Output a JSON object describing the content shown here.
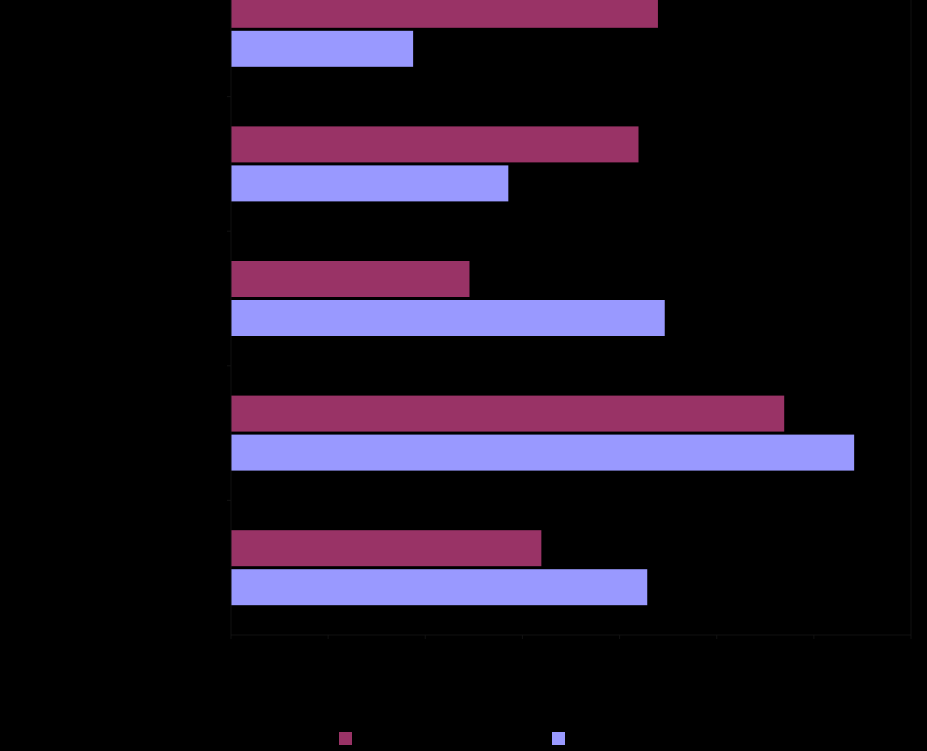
{
  "chart_data": {
    "type": "bar",
    "orientation": "horizontal",
    "categories": [
      "",
      "",
      "",
      "",
      ""
    ],
    "series": [
      {
        "color": "#993366",
        "values": [
          44,
          42,
          24.6,
          57,
          32
        ]
      },
      {
        "color": "#9999FF",
        "values": [
          18.8,
          28.6,
          44.7,
          64.2,
          42.9
        ]
      }
    ],
    "xlim": [
      0,
      70
    ],
    "xticks": [
      0,
      10,
      20,
      30,
      40,
      50,
      60,
      70
    ],
    "grid": false,
    "legend": "bottom",
    "title": "",
    "xlabel": "",
    "ylabel": ""
  }
}
